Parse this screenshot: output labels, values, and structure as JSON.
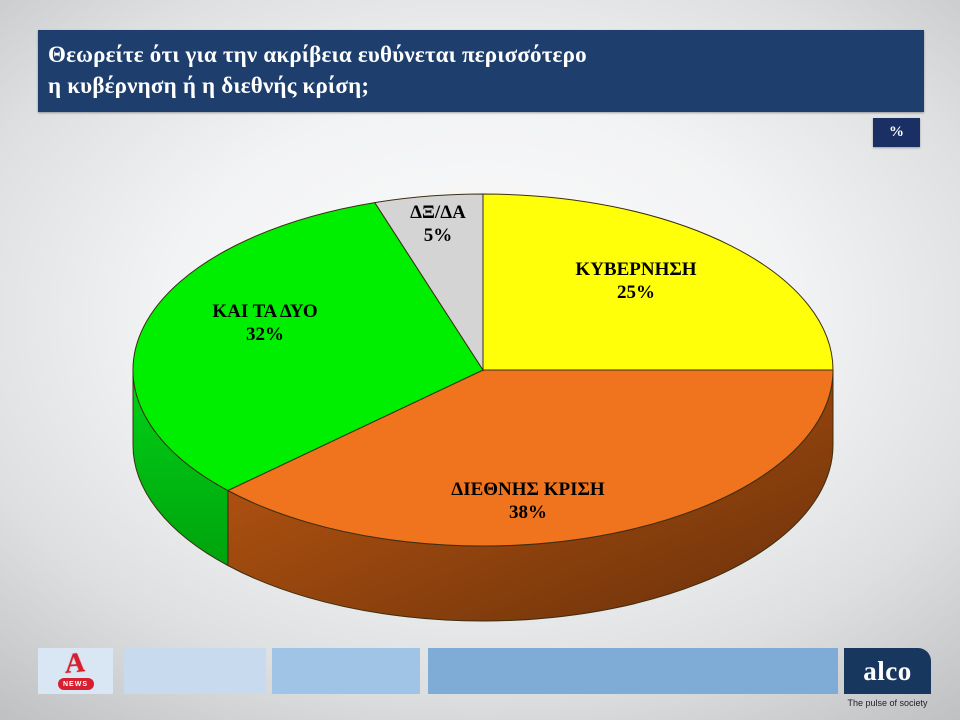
{
  "title": {
    "line1": "Θεωρείτε ότι για την ακρίβεια ευθύνεται περισσότερο",
    "line2": "η κυβέρνηση ή η διεθνής κρίση;"
  },
  "unit_badge": "%",
  "colors": {
    "banner": "#1E3F6E",
    "badge": "#1A2F63",
    "label_text": "#000000"
  },
  "chart_data": {
    "type": "pie",
    "title": "Θεωρείτε ότι για την ακρίβεια ευθύνεται περισσότερο η κυβέρνηση ή η διεθνής κρίση;",
    "unit": "%",
    "effect": "3d",
    "start_angle_deg": -90,
    "direction": "clockwise",
    "legend": "none (labels inside slices)",
    "labels": [
      "ΚΥΒΕΡΝΗΣΗ",
      "ΔΙΕΘΝΗΣ ΚΡΙΣΗ",
      "ΚΑΙ ΤΑ ΔΥΟ",
      "ΔΞ/ΔΑ"
    ],
    "values": [
      25,
      38,
      32,
      5
    ],
    "slices": [
      {
        "label": "ΚΥΒΕΡΝΗΣΗ",
        "value": 25,
        "pct": "25%",
        "color": "#FFFF0A",
        "side_from": "#C9C900",
        "side_to": "#9A9A00"
      },
      {
        "label": "ΔΙΕΘΝΗΣ ΚΡΙΣΗ",
        "value": 38,
        "pct": "38%",
        "color": "#F0741E",
        "side_from": "#C25A12",
        "side_to": "#68300A"
      },
      {
        "label": "ΚΑΙ ΤΑ ΔΥΟ",
        "value": 32,
        "pct": "32%",
        "color": "#00EF00",
        "side_from": "#00D216",
        "side_to": "#00A30D"
      },
      {
        "label": "ΔΞ/ΔΑ",
        "value": 5,
        "pct": "5%",
        "color": "#D4D4D4",
        "side_from": "#B0B0B0",
        "side_to": "#8F8F8F"
      }
    ]
  },
  "footer": {
    "alpha_logo": {
      "letter": "A",
      "news_label": "NEWS",
      "color": "#D6202F"
    },
    "bars": [
      {
        "color": "#D9E6F3"
      },
      {
        "color": "#C7DAEE"
      },
      {
        "color": "#9FC4E5"
      },
      {
        "color": "#7FACD7"
      }
    ],
    "alco": {
      "name": "alco",
      "tagline": "The pulse of society",
      "bg": "#17375E"
    }
  }
}
